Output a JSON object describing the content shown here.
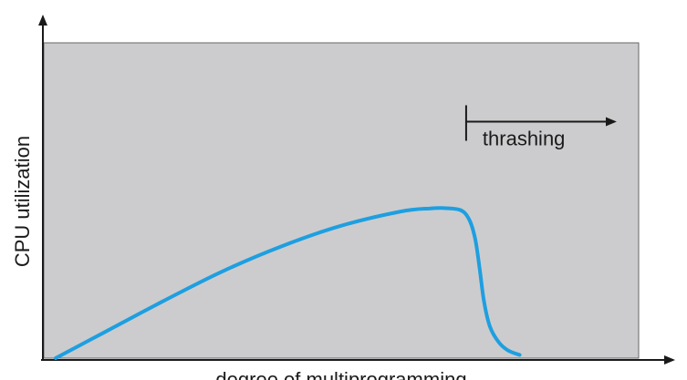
{
  "chart_data": {
    "type": "line",
    "title": "",
    "xlabel": "degree of multiprogramming",
    "ylabel": "CPU utilization",
    "xlim": [
      0,
      100
    ],
    "ylim": [
      0,
      100
    ],
    "grid": false,
    "legend": "none",
    "colors": {
      "plot_background": "#ccccce",
      "curve": "#1e9fe0",
      "axes": "#1a1a1a"
    },
    "series": [
      {
        "values": [
          [
            2,
            0
          ],
          [
            10,
            8
          ],
          [
            20,
            18
          ],
          [
            30,
            27.5
          ],
          [
            40,
            35.5
          ],
          [
            50,
            42
          ],
          [
            60,
            46.5
          ],
          [
            65,
            47.5
          ],
          [
            67,
            47.6
          ],
          [
            70,
            47
          ],
          [
            71.5,
            44
          ],
          [
            72.5,
            38
          ],
          [
            73.3,
            28
          ],
          [
            74,
            18
          ],
          [
            75,
            10
          ],
          [
            76.5,
            5
          ],
          [
            78,
            2.5
          ],
          [
            80,
            1
          ]
        ]
      }
    ],
    "annotations": [
      {
        "text": "thrashing",
        "x_start": 71,
        "x_end": 96,
        "y": 75
      }
    ]
  }
}
